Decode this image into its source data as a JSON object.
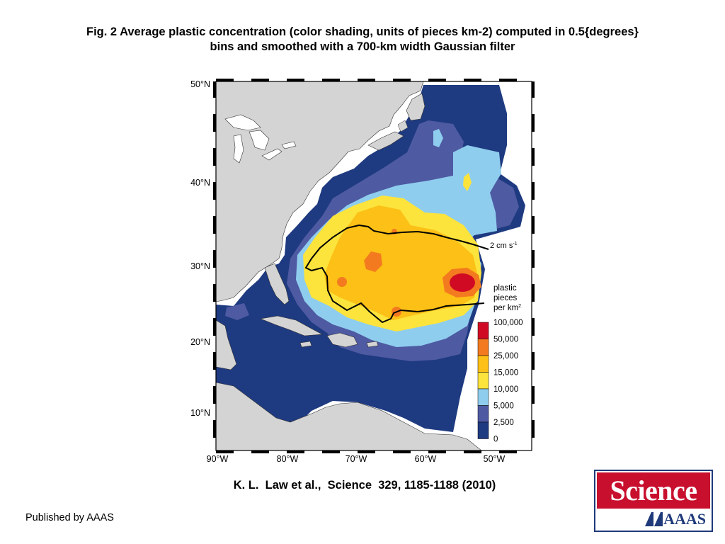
{
  "figure": {
    "caption_line1": "Fig. 2 Average plastic concentration (color shading, units of pieces km-2) computed in 0.5{degrees}",
    "caption_line2": "bins and smoothed with a 700-km width Gaussian filter",
    "citation": "K. L.  Law et al.,  Science  329, 1185-1188 (2010)",
    "publisher": "Published by AAAS"
  },
  "logo": {
    "wordmark": "Science",
    "org": "AAAS",
    "icon": "aaas-logo-icon",
    "colors": {
      "red": "#c8102e",
      "blue": "#1f3a7a"
    }
  },
  "map": {
    "region": "North Atlantic Ocean",
    "lat_labels": [
      "50°N",
      "40°N",
      "30°N",
      "20°N",
      "10°N"
    ],
    "lon_labels": [
      "90°W",
      "80°W",
      "70°W",
      "60°W",
      "50°W"
    ],
    "contour_label": "2 cm s",
    "contour_label_sup": "-1",
    "land_color": "#d4d4d4",
    "ocean_default": "#1e3a80",
    "colorbar": {
      "title_line1": "plastic",
      "title_line2": "pieces",
      "title_line3": "per km",
      "title_sup": "2",
      "levels": [
        "100,000",
        "50,000",
        "25,000",
        "15,000",
        "10,000",
        "5,000",
        "2,500",
        "0"
      ],
      "colors": [
        "#d10a24",
        "#f47a1f",
        "#fcc016",
        "#fce43c",
        "#8fcdee",
        "#4e5aa2",
        "#1e3a80"
      ]
    }
  }
}
